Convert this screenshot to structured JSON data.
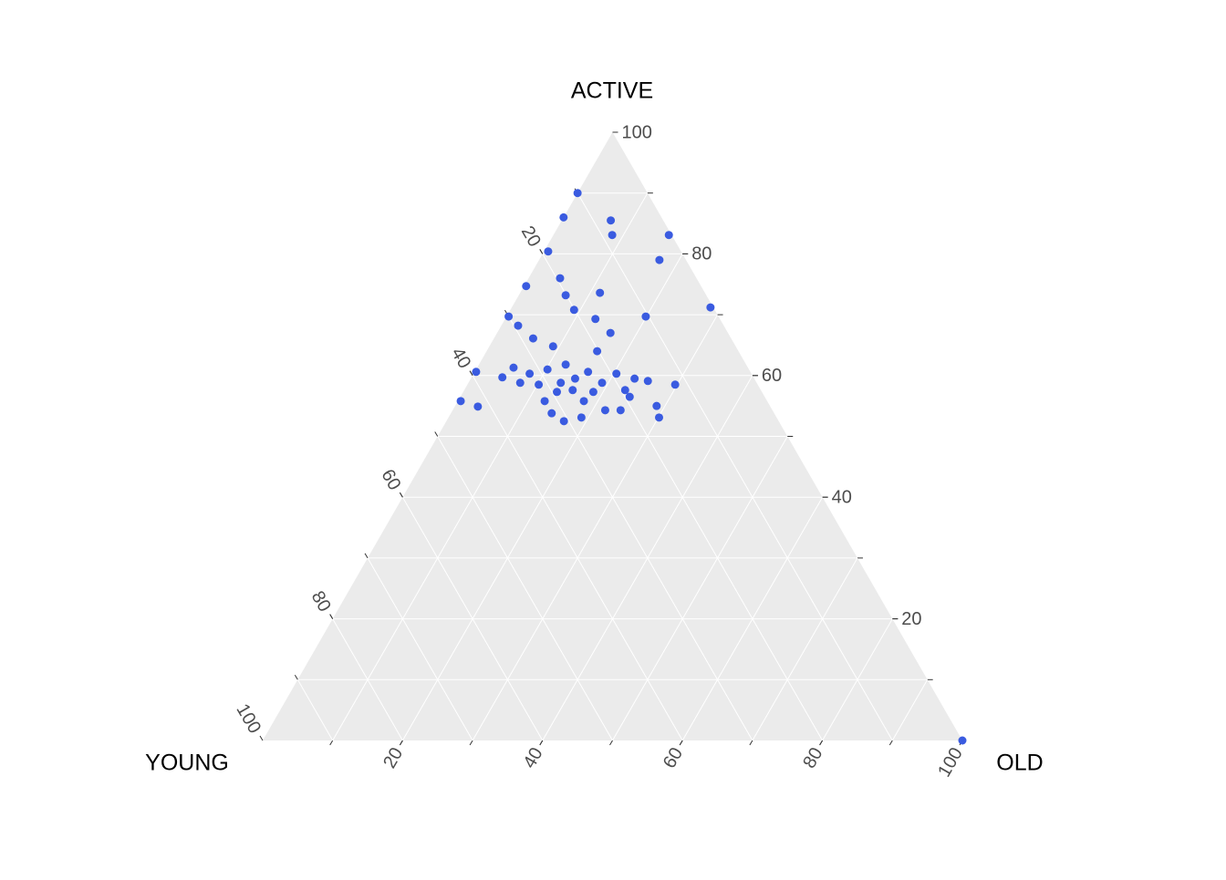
{
  "chart_data": {
    "type": "ternary",
    "axes": {
      "young": {
        "label": "YOUNG",
        "ticks": [
          20,
          40,
          60,
          80,
          100
        ]
      },
      "active": {
        "label": "ACTIVE",
        "ticks": [
          20,
          40,
          60,
          80,
          100
        ]
      },
      "old": {
        "label": "OLD",
        "ticks": [
          20,
          40,
          60,
          80,
          100
        ]
      }
    },
    "gridlines": [
      10,
      20,
      30,
      40,
      50,
      60,
      70,
      80,
      90
    ],
    "grid": true,
    "color": "#3a5be0",
    "points": {
      "young": [
        10,
        14,
        7.5,
        8.5,
        0.4,
        3.8,
        19,
        19.5,
        25,
        20.1,
        15,
        20.1,
        10.4,
        0.4,
        30,
        29.4,
        17.8,
        28.3,
        16.8,
        26.1,
        20.2,
        39.2,
        35.9,
        33.5,
        31.7,
        28.8,
        25.8,
        25.6,
        23.2,
        22.1,
        19.3,
        17.1,
        15.4,
        11.8,
        43.8,
        41.8,
        31.8,
        29.3,
        31.8,
        30.7,
        27.9,
        26.2,
        23.9,
        21.7,
        19.3,
        16.2,
        16.8,
        26.9,
        31.3,
        33.8,
        0,
        24.1,
        28,
        19.4
      ],
      "active": [
        90,
        86,
        85.5,
        83.1,
        83.1,
        79,
        80.4,
        76,
        74.7,
        73.2,
        73.6,
        70.8,
        69.7,
        71.2,
        69.7,
        68.2,
        69.3,
        66.1,
        67,
        64.8,
        64,
        60.6,
        59.7,
        61.3,
        60.3,
        61,
        61.8,
        59.5,
        60.6,
        58.8,
        60.3,
        59.5,
        59.1,
        58.5,
        55.8,
        54.9,
        55.8,
        57.3,
        53.8,
        52.5,
        53.1,
        55.8,
        54.3,
        54.3,
        56.5,
        55,
        53.1,
        57.6,
        58.5,
        58.8,
        0,
        57.3,
        58.8,
        57.6
      ],
      "old": [
        0,
        0,
        7,
        8.4,
        16.5,
        17.2,
        0.6,
        4.5,
        0.3,
        6.7,
        11.4,
        9.1,
        19.9,
        28.4,
        0.3,
        2.4,
        12.9,
        5.6,
        16.2,
        9.1,
        15.8,
        0.2,
        4.4,
        5.2,
        8,
        10.2,
        12.4,
        14.9,
        16.2,
        19.1,
        20.4,
        23.4,
        25.5,
        29.7,
        0.4,
        3.3,
        12.4,
        13.4,
        14.4,
        16.8,
        19,
        18,
        21.8,
        24,
        24.2,
        28.8,
        30.1,
        15.5,
        10.2,
        7.4,
        100,
        18.6,
        13.2,
        23
      ]
    }
  }
}
